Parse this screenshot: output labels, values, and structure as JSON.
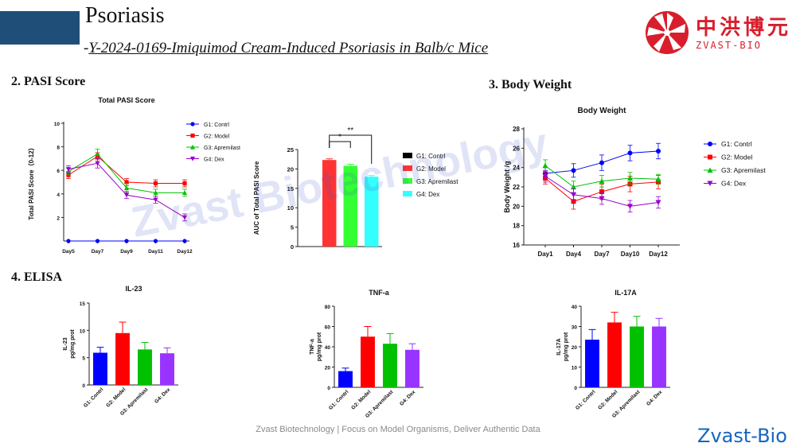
{
  "header": {
    "title": "Psoriasis",
    "subtitle_dash": "-",
    "subtitle": "Y-2024-0169-Imiquimod Cream-Induced Psoriasis in Balb/c Mice",
    "logo_cn": "中洪博元",
    "logo_en": "ZVAST-BIO"
  },
  "sections": {
    "pasi": "2. PASI Score",
    "body_weight": "3. Body Weight",
    "elisa": "4.  ELISA"
  },
  "watermark": "Zvast Biotechnology",
  "footer": "Zvast Biotechnology | Focus on Model Organisms, Deliver Authentic Data",
  "brand": "Zvast-Bio",
  "colors": {
    "G1": "#0000ff",
    "G2": "#ff0000",
    "G3": "#00c000",
    "G4": "#9900cc",
    "G4_bar": "#9933ff",
    "cyan": "#33ffff",
    "brand": "#d81e2c"
  },
  "chart_data": [
    {
      "id": "pasi_line",
      "type": "line",
      "title": "Total PASI Score",
      "xlabel": "",
      "ylabel": "Total PASI Score（0-12）",
      "categories": [
        "Day5",
        "Day7",
        "Day9",
        "Day11",
        "Day12"
      ],
      "ylim": [
        0,
        10
      ],
      "yticks": [
        2,
        4,
        6,
        8,
        10
      ],
      "series": [
        {
          "name": "G1: Contrl",
          "marker": "circle",
          "values": [
            0,
            0,
            0,
            0,
            0
          ],
          "err": [
            0,
            0,
            0,
            0,
            0
          ]
        },
        {
          "name": "G2: Model",
          "marker": "square",
          "values": [
            5.6,
            7.2,
            5.0,
            4.9,
            4.9
          ],
          "err": [
            0.3,
            0.3,
            0.3,
            0.3,
            0.3
          ]
        },
        {
          "name": "G3: Apremilast",
          "marker": "triangle-up",
          "values": [
            5.9,
            7.4,
            4.5,
            4.1,
            4.1
          ],
          "err": [
            0.3,
            0.4,
            0.4,
            0.3,
            0.3
          ]
        },
        {
          "name": "G4: Dex",
          "marker": "triangle-down",
          "values": [
            6.1,
            6.6,
            3.9,
            3.5,
            2.0
          ],
          "err": [
            0.3,
            0.4,
            0.3,
            0.3,
            0.3
          ]
        }
      ],
      "legend": "right"
    },
    {
      "id": "pasi_auc",
      "type": "bar",
      "title": "",
      "ylabel": "AUC of Total PASI Score",
      "categories": [
        "G1: Contrl",
        "G2: Model",
        "G3: Apremilast",
        "G4: Dex"
      ],
      "values": [
        0,
        22.3,
        20.8,
        18.0
      ],
      "err": [
        0,
        0.3,
        0.4,
        0.3
      ],
      "ylim": [
        0,
        25
      ],
      "yticks": [
        0,
        5,
        10,
        15,
        20,
        25
      ],
      "bar_colors": [
        "#000000",
        "#ff3333",
        "#33ff33",
        "#33ffff"
      ],
      "significance": [
        {
          "from": 1,
          "to": 2,
          "label": "*"
        },
        {
          "from": 1,
          "to": 3,
          "label": "**"
        }
      ],
      "legend": "right"
    },
    {
      "id": "body_weight",
      "type": "line",
      "title": "Body Weight",
      "xlabel": "",
      "ylabel": "Body Weight /g",
      "categories": [
        "Day1",
        "Day4",
        "Day7",
        "Day10",
        "Day12"
      ],
      "ylim": [
        16,
        28
      ],
      "yticks": [
        16,
        18,
        20,
        22,
        24,
        26,
        28
      ],
      "series": [
        {
          "name": "G1: Contrl",
          "marker": "circle",
          "values": [
            23.4,
            23.7,
            24.5,
            25.5,
            25.7
          ],
          "err": [
            0.6,
            0.7,
            0.8,
            0.8,
            0.8
          ]
        },
        {
          "name": "G2: Model",
          "marker": "square",
          "values": [
            22.9,
            20.5,
            21.5,
            22.3,
            22.5
          ],
          "err": [
            0.6,
            0.8,
            0.8,
            0.8,
            0.7
          ]
        },
        {
          "name": "G3: Apremilast",
          "marker": "triangle-up",
          "values": [
            24.2,
            22.0,
            22.6,
            22.9,
            22.8
          ],
          "err": [
            0.6,
            0.6,
            0.6,
            0.6,
            0.5
          ]
        },
        {
          "name": "G4: Dex",
          "marker": "triangle-down",
          "values": [
            23.1,
            21.2,
            20.8,
            20.0,
            20.4
          ],
          "err": [
            0.6,
            0.6,
            0.6,
            0.6,
            0.6
          ]
        }
      ],
      "legend": "right"
    },
    {
      "id": "il23",
      "type": "bar",
      "title": "IL-23",
      "ylabel": "IL-23",
      "ylabel2": "pg/mg prot",
      "categories": [
        "G1: Contrl",
        "G2: Model",
        "G3: Apremilast",
        "G4: Dex"
      ],
      "values": [
        5.9,
        9.5,
        6.5,
        5.8
      ],
      "err": [
        1.0,
        2.0,
        1.3,
        1.0
      ],
      "ylim": [
        0,
        15
      ],
      "yticks": [
        0,
        5,
        10,
        15
      ],
      "bar_colors": [
        "#0000ff",
        "#ff0000",
        "#00c000",
        "#9933ff"
      ]
    },
    {
      "id": "tnfa",
      "type": "bar",
      "title": "TNF-a",
      "ylabel": "TNF-a",
      "ylabel2": "pg/mg prot",
      "categories": [
        "G1: Contrl",
        "G2: Model",
        "G3: Apremilast",
        "G4: Dex"
      ],
      "values": [
        16,
        50,
        43,
        37
      ],
      "err": [
        3,
        10,
        10,
        6
      ],
      "ylim": [
        0,
        80
      ],
      "yticks": [
        0,
        20,
        40,
        60,
        80
      ],
      "bar_colors": [
        "#0000ff",
        "#ff0000",
        "#00c000",
        "#9933ff"
      ]
    },
    {
      "id": "il17a",
      "type": "bar",
      "title": "IL-17A",
      "ylabel": "IL-17A",
      "ylabel2": "pg/mg prot",
      "categories": [
        "G1: Contrl",
        "G2: Model",
        "G3: Apremilast",
        "G4: Dex"
      ],
      "values": [
        23.5,
        32,
        30,
        30
      ],
      "err": [
        5,
        5,
        5,
        4
      ],
      "ylim": [
        0,
        40
      ],
      "yticks": [
        0,
        10,
        20,
        30,
        40
      ],
      "bar_colors": [
        "#0000ff",
        "#ff0000",
        "#00c000",
        "#9933ff"
      ]
    }
  ]
}
